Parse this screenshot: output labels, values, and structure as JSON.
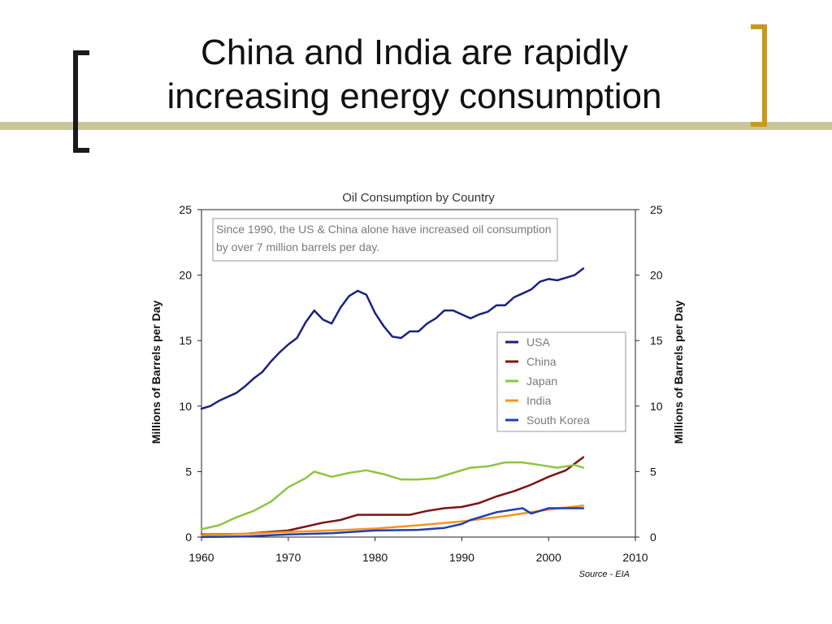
{
  "slide": {
    "title_line1": "China and India are rapidly",
    "title_line2": "increasing energy consumption"
  },
  "colors": {
    "title_rule": "#c9c79a",
    "bracket_left": "#1a1a1a",
    "bracket_right": "#c79a1d"
  },
  "chart_data": {
    "type": "line",
    "title": "Oil Consumption by Country",
    "ylabel": "Millions of Barrels per Day",
    "ylabel_right": "Millions of Barrels per Day",
    "xlim": [
      1960,
      2010
    ],
    "ylim": [
      0,
      25
    ],
    "xticks": [
      1960,
      1970,
      1980,
      1990,
      2000,
      2010
    ],
    "yticks": [
      0,
      5,
      10,
      15,
      20,
      25
    ],
    "grid": false,
    "legend_position": "right",
    "annotation": "Since 1990, the US & China alone have increased oil consumption by over 7 million barrels per day.",
    "source": "Source - EIA",
    "series": [
      {
        "name": "USA",
        "color": "#1a237e",
        "x": [
          1960,
          1961,
          1962,
          1963,
          1964,
          1965,
          1966,
          1967,
          1968,
          1969,
          1970,
          1971,
          1972,
          1973,
          1974,
          1975,
          1976,
          1977,
          1978,
          1979,
          1980,
          1981,
          1982,
          1983,
          1984,
          1985,
          1986,
          1987,
          1988,
          1989,
          1990,
          1991,
          1992,
          1993,
          1994,
          1995,
          1996,
          1997,
          1998,
          1999,
          2000,
          2001,
          2002,
          2003,
          2004
        ],
        "y": [
          9.8,
          10.0,
          10.4,
          10.7,
          11.0,
          11.5,
          12.1,
          12.6,
          13.4,
          14.1,
          14.7,
          15.2,
          16.4,
          17.3,
          16.6,
          16.3,
          17.5,
          18.4,
          18.8,
          18.5,
          17.1,
          16.1,
          15.3,
          15.2,
          15.7,
          15.7,
          16.3,
          16.7,
          17.3,
          17.3,
          17.0,
          16.7,
          17.0,
          17.2,
          17.7,
          17.7,
          18.3,
          18.6,
          18.9,
          19.5,
          19.7,
          19.6,
          19.8,
          20.0,
          20.5
        ]
      },
      {
        "name": "China",
        "color": "#7b1412",
        "x": [
          1960,
          1965,
          1970,
          1972,
          1974,
          1976,
          1978,
          1980,
          1982,
          1984,
          1986,
          1988,
          1990,
          1992,
          1994,
          1996,
          1998,
          2000,
          2002,
          2004
        ],
        "y": [
          0.2,
          0.25,
          0.5,
          0.8,
          1.1,
          1.3,
          1.7,
          1.7,
          1.7,
          1.7,
          2.0,
          2.2,
          2.3,
          2.6,
          3.1,
          3.5,
          4.0,
          4.6,
          5.1,
          6.1
        ]
      },
      {
        "name": "Japan",
        "color": "#8cc63f",
        "x": [
          1960,
          1962,
          1964,
          1966,
          1968,
          1970,
          1972,
          1973,
          1975,
          1977,
          1979,
          1981,
          1983,
          1985,
          1987,
          1989,
          1991,
          1993,
          1995,
          1997,
          1999,
          2001,
          2003,
          2004
        ],
        "y": [
          0.6,
          0.9,
          1.5,
          2.0,
          2.7,
          3.8,
          4.5,
          5.0,
          4.6,
          4.9,
          5.1,
          4.8,
          4.4,
          4.4,
          4.5,
          4.9,
          5.3,
          5.4,
          5.7,
          5.7,
          5.5,
          5.3,
          5.5,
          5.3
        ]
      },
      {
        "name": "India",
        "color": "#f7941d",
        "x": [
          1960,
          1965,
          1970,
          1975,
          1980,
          1985,
          1990,
          1995,
          2000,
          2004
        ],
        "y": [
          0.15,
          0.25,
          0.4,
          0.5,
          0.65,
          0.9,
          1.2,
          1.6,
          2.1,
          2.4
        ]
      },
      {
        "name": "South Korea",
        "color": "#1f3fb3",
        "x": [
          1960,
          1965,
          1970,
          1975,
          1980,
          1985,
          1988,
          1990,
          1991,
          1992,
          1993,
          1994,
          1995,
          1996,
          1997,
          1998,
          1999,
          2000,
          2001,
          2002,
          2003,
          2004
        ],
        "y": [
          0.0,
          0.05,
          0.2,
          0.3,
          0.5,
          0.55,
          0.7,
          1.0,
          1.3,
          1.5,
          1.7,
          1.9,
          2.0,
          2.1,
          2.2,
          1.8,
          2.0,
          2.2,
          2.2,
          2.2,
          2.2,
          2.2
        ]
      }
    ]
  }
}
